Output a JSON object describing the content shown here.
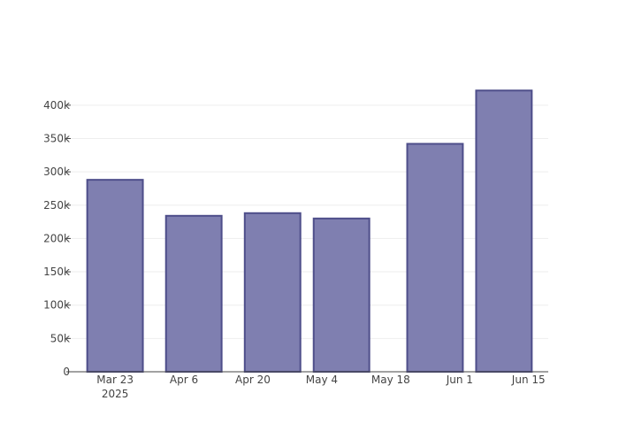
{
  "chart_data": {
    "type": "bar",
    "x_axis_type": "date",
    "categories": [
      "2025-03-23",
      "2025-04-08",
      "2025-04-24",
      "2025-05-08",
      "2025-05-27",
      "2025-06-10"
    ],
    "values": [
      288000,
      234000,
      238000,
      230000,
      342000,
      422000
    ],
    "title": "",
    "xlabel": "",
    "ylabel": "",
    "ylim": [
      0,
      425000
    ],
    "y_ticks": [
      0,
      50000,
      100000,
      150000,
      200000,
      250000,
      300000,
      350000,
      400000
    ],
    "y_tick_labels": [
      "0",
      "50k",
      "100k",
      "150k",
      "200k",
      "250k",
      "300k",
      "350k",
      "400k"
    ],
    "x_ticks": [
      "2025-03-23",
      "2025-04-06",
      "2025-04-20",
      "2025-05-04",
      "2025-05-18",
      "2025-06-01",
      "2025-06-15"
    ],
    "x_tick_labels": [
      "Mar 23",
      "Apr 6",
      "Apr 20",
      "May 4",
      "May 18",
      "Jun 1",
      "Jun 15"
    ],
    "x_tick_sublabel": "2025",
    "grid": true,
    "legend": "none",
    "bar_fill": "#7f7fb0",
    "bar_stroke": "#4e4e8a",
    "axis_color": "#444444",
    "grid_color": "#eeeeee"
  }
}
